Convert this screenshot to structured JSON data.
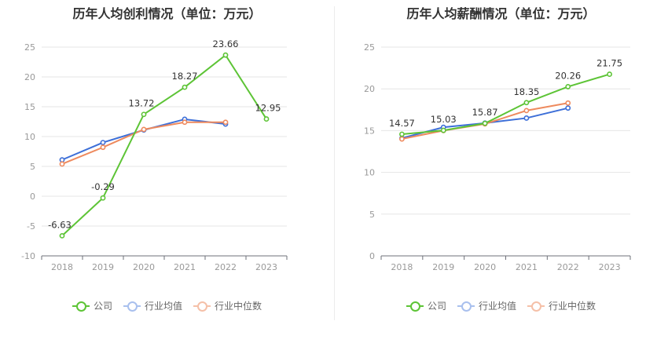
{
  "chart_data": [
    {
      "type": "line",
      "title": "历年人均创利情况（单位：万元）",
      "x": [
        "2018",
        "2019",
        "2020",
        "2021",
        "2022",
        "2023"
      ],
      "ylim": [
        -10,
        25
      ],
      "yticks": [
        -10,
        -5,
        0,
        5,
        10,
        15,
        20,
        25
      ],
      "grid": true,
      "legend_position": "bottom",
      "series": [
        {
          "name": "公司",
          "color": "#5dc436",
          "values": [
            -6.63,
            -0.29,
            13.72,
            18.27,
            23.66,
            12.95
          ],
          "labels": [
            "-6.63",
            "-0.29",
            "13.72",
            "18.27",
            "23.66",
            "12.95"
          ]
        },
        {
          "name": "行业均值",
          "color": "#3d6fd8",
          "values": [
            6.1,
            9.0,
            11.1,
            12.9,
            12.1,
            null
          ]
        },
        {
          "name": "行业中位数",
          "color": "#ee8a5e",
          "values": [
            5.4,
            8.2,
            11.2,
            12.4,
            12.4,
            null
          ]
        }
      ]
    },
    {
      "type": "line",
      "title": "历年人均薪酬情况（单位：万元）",
      "x": [
        "2018",
        "2019",
        "2020",
        "2021",
        "2022",
        "2023"
      ],
      "ylim": [
        0,
        25
      ],
      "yticks": [
        0,
        5,
        10,
        15,
        20,
        25
      ],
      "grid": true,
      "legend_position": "bottom",
      "series": [
        {
          "name": "公司",
          "color": "#5dc436",
          "values": [
            14.57,
            15.03,
            15.87,
            18.35,
            20.26,
            21.75
          ],
          "labels": [
            "14.57",
            "15.03",
            "15.87",
            "18.35",
            "20.26",
            "21.75"
          ]
        },
        {
          "name": "行业均值",
          "color": "#3d6fd8",
          "values": [
            14.1,
            15.4,
            15.9,
            16.5,
            17.7,
            null
          ]
        },
        {
          "name": "行业中位数",
          "color": "#ee8a5e",
          "values": [
            14.0,
            15.0,
            15.8,
            17.4,
            18.3,
            null
          ]
        }
      ]
    }
  ]
}
